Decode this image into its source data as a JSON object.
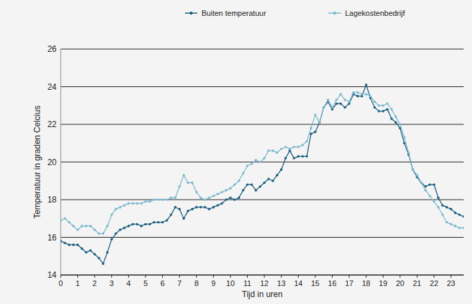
{
  "chart_data": {
    "type": "line",
    "x_label": "Tijd in uren",
    "y_label": "Temperatuur in graden Celcius",
    "x": [
      0,
      0.25,
      0.5,
      0.75,
      1,
      1.25,
      1.5,
      1.75,
      2,
      2.25,
      2.5,
      2.75,
      3,
      3.25,
      3.5,
      3.75,
      4,
      4.25,
      4.5,
      4.75,
      5,
      5.25,
      5.5,
      5.75,
      6,
      6.25,
      6.5,
      6.75,
      7,
      7.25,
      7.5,
      7.75,
      8,
      8.25,
      8.5,
      8.75,
      9,
      9.25,
      9.5,
      9.75,
      10,
      10.25,
      10.5,
      10.75,
      11,
      11.25,
      11.5,
      11.75,
      12,
      12.25,
      12.5,
      12.75,
      13,
      13.25,
      13.5,
      13.75,
      14,
      14.25,
      14.5,
      14.75,
      15,
      15.25,
      15.5,
      15.75,
      16,
      16.25,
      16.5,
      16.75,
      17,
      17.25,
      17.5,
      17.75,
      18,
      18.25,
      18.5,
      18.75,
      19,
      19.25,
      19.5,
      19.75,
      20,
      20.25,
      20.5,
      20.75,
      21,
      21.25,
      21.5,
      21.75,
      22,
      22.25,
      22.5,
      22.75,
      23,
      23.25,
      23.5,
      23.75
    ],
    "series": [
      {
        "name": "Buiten temperatuur",
        "color": "#1d5f80",
        "marker": "circle",
        "values": [
          15.8,
          15.7,
          15.6,
          15.6,
          15.6,
          15.4,
          15.2,
          15.3,
          15.1,
          14.9,
          14.6,
          15.2,
          15.9,
          16.2,
          16.4,
          16.5,
          16.6,
          16.7,
          16.7,
          16.6,
          16.7,
          16.7,
          16.8,
          16.8,
          16.8,
          16.9,
          17.2,
          17.6,
          17.5,
          17.0,
          17.4,
          17.5,
          17.6,
          17.6,
          17.6,
          17.5,
          17.6,
          17.7,
          17.8,
          18.0,
          18.1,
          18.0,
          18.1,
          18.5,
          18.8,
          18.8,
          18.5,
          18.7,
          18.9,
          19.1,
          19.0,
          19.3,
          19.6,
          20.2,
          20.6,
          20.2,
          20.3,
          20.3,
          20.3,
          21.5,
          21.6,
          22.1,
          22.9,
          23.2,
          22.8,
          23.1,
          23.1,
          22.9,
          23.1,
          23.6,
          23.5,
          23.5,
          24.1,
          23.4,
          22.9,
          22.7,
          22.7,
          22.8,
          22.3,
          22.1,
          21.8,
          21.0,
          20.4,
          19.6,
          19.2,
          18.9,
          18.7,
          18.8,
          18.8,
          18.1,
          17.7,
          17.6,
          17.5,
          17.3,
          17.2,
          17.1
        ]
      },
      {
        "name": "Lagekostenbedrijf",
        "color": "#7fb9cf",
        "marker": "circle",
        "values": [
          16.9,
          17.0,
          16.8,
          16.6,
          16.4,
          16.6,
          16.6,
          16.6,
          16.4,
          16.2,
          16.2,
          16.6,
          17.2,
          17.5,
          17.6,
          17.7,
          17.8,
          17.8,
          17.8,
          17.8,
          17.9,
          17.9,
          18.0,
          18.0,
          18.0,
          18.0,
          18.1,
          18.1,
          18.7,
          19.3,
          18.9,
          18.9,
          18.4,
          18.1,
          18.0,
          18.1,
          18.2,
          18.3,
          18.4,
          18.5,
          18.6,
          18.8,
          19.0,
          19.4,
          19.8,
          19.9,
          20.1,
          20.0,
          20.2,
          20.6,
          20.6,
          20.5,
          20.7,
          20.8,
          20.7,
          20.8,
          20.8,
          20.9,
          21.1,
          21.8,
          22.5,
          22.1,
          22.9,
          23.3,
          22.9,
          23.3,
          23.6,
          23.3,
          23.2,
          23.7,
          23.7,
          23.6,
          23.6,
          23.5,
          23.2,
          23.0,
          23.0,
          23.1,
          22.8,
          22.4,
          22.0,
          21.3,
          20.5,
          19.6,
          19.3,
          18.9,
          18.5,
          18.2,
          17.9,
          17.6,
          17.2,
          16.8,
          16.7,
          16.6,
          16.5,
          16.5
        ]
      }
    ],
    "xlim": [
      0,
      23.75
    ],
    "xticks": [
      0,
      1,
      2,
      3,
      4,
      5,
      6,
      7,
      8,
      9,
      10,
      11,
      12,
      13,
      14,
      15,
      16,
      17,
      18,
      19,
      20,
      21,
      22,
      23
    ],
    "ylim": [
      14,
      26
    ],
    "yticks": [
      14,
      16,
      18,
      20,
      22,
      24,
      26
    ],
    "grid": true,
    "legend": "top"
  }
}
